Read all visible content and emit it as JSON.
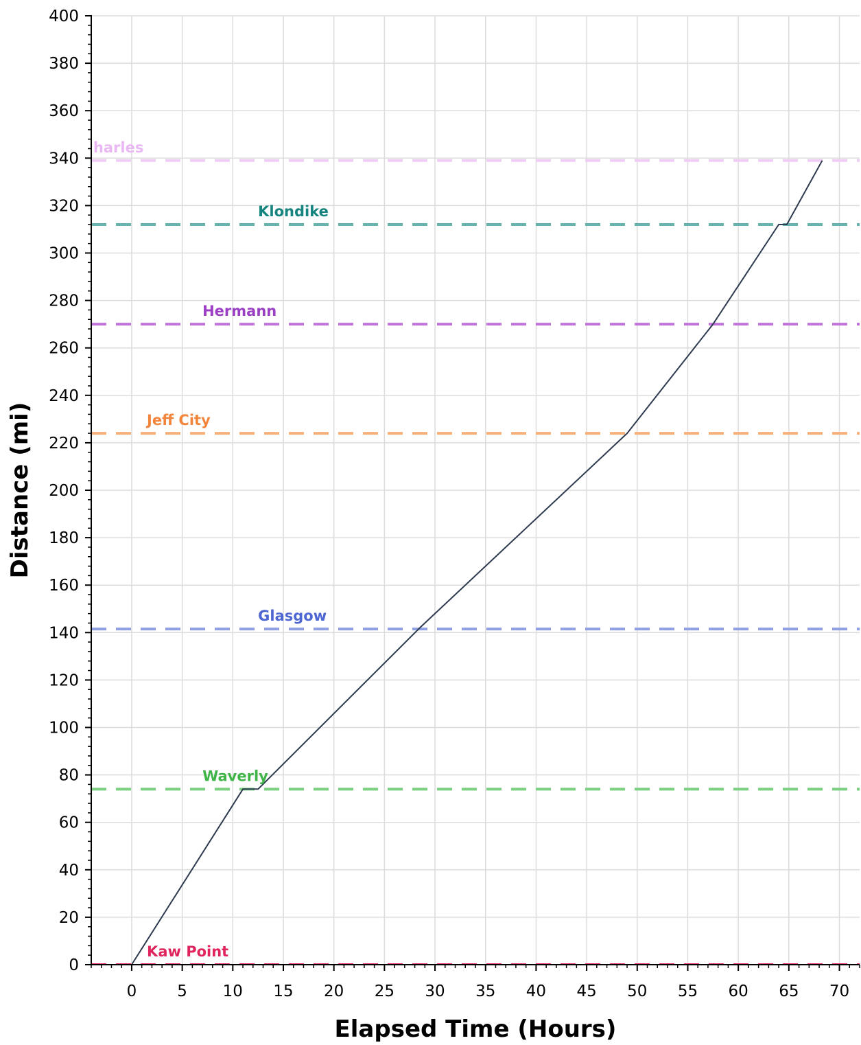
{
  "chart_data": {
    "type": "line",
    "xlabel": "Elapsed Time (Hours)",
    "ylabel": "Distance (mi)",
    "xlim": [
      -4,
      72
    ],
    "ylim": [
      0,
      400
    ],
    "x_ticks": [
      0,
      5,
      10,
      15,
      20,
      25,
      30,
      35,
      40,
      45,
      50,
      55,
      60,
      65,
      70
    ],
    "y_ticks": [
      0,
      20,
      40,
      60,
      80,
      100,
      120,
      140,
      160,
      180,
      200,
      220,
      240,
      260,
      280,
      300,
      320,
      340,
      360,
      380,
      400
    ],
    "grid": true,
    "series": [
      {
        "color": "#2d3a4f",
        "x": [
          0,
          11,
          12.5,
          28.5,
          49,
          57.5,
          64,
          64.8,
          68.3
        ],
        "y": [
          0,
          74,
          74,
          142,
          224,
          270,
          312,
          312,
          339
        ]
      }
    ],
    "landmarks": [
      {
        "name": "Kaw Point",
        "label": "Kaw Point",
        "y": 0,
        "label_x": 1.5,
        "color": "#e8336a",
        "label_color": "#e0245e"
      },
      {
        "name": "Waverly",
        "label": "Waverly",
        "y": 74,
        "label_x": 7,
        "color": "#7dcf82",
        "label_color": "#3fb548"
      },
      {
        "name": "Glasgow",
        "label": "Glasgow",
        "y": 141.5,
        "label_x": 12.5,
        "color": "#8f9fe3",
        "label_color": "#4d66d1"
      },
      {
        "name": "Jeff City",
        "label": "Jeff City",
        "y": 224,
        "label_x": 1.5,
        "color": "#f8b07a",
        "label_color": "#f2853b"
      },
      {
        "name": "Hermann",
        "label": "Hermann",
        "y": 270,
        "label_x": 7,
        "color": "#bf74d9",
        "label_color": "#9b3fc4"
      },
      {
        "name": "Klondike",
        "label": "Klondike",
        "y": 312,
        "label_x": 12.5,
        "color": "#68b2b0",
        "label_color": "#17857f"
      },
      {
        "name": "St. Charles",
        "label": "harles",
        "y": 339,
        "label_x": -3.8,
        "color": "#efcdf6",
        "label_color": "#e9b8f3"
      }
    ]
  }
}
